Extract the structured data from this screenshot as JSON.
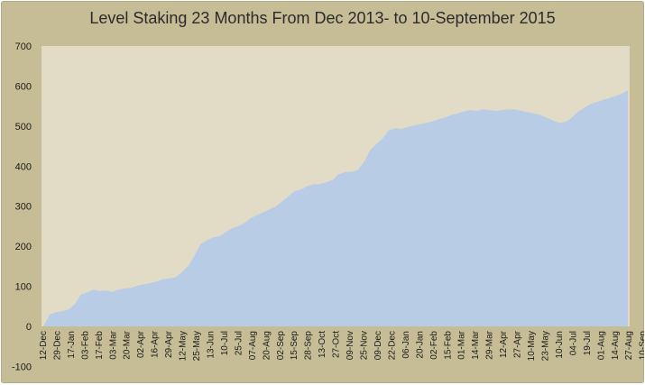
{
  "chart_data": {
    "type": "area",
    "title": "Level Staking 23 Months From Dec 2013- to 10-September 2015",
    "xlabel": "",
    "ylabel": "",
    "ylim": [
      -100,
      700
    ],
    "yticks": [
      -100,
      0,
      100,
      200,
      300,
      400,
      500,
      600,
      700
    ],
    "x_tick_labels": [
      "12-Dec",
      "29-Dec",
      "17-Jan",
      "03-Feb",
      "17-Feb",
      "03-Mar",
      "20-Mar",
      "02-Apr",
      "16-Apr",
      "29-Apr",
      "12-May",
      "25-May",
      "13-Jun",
      "10-Jul",
      "25-Jul",
      "07-Aug",
      "20-Aug",
      "02-Sep",
      "15-Sep",
      "28-Sep",
      "13-Oct",
      "27-Oct",
      "09-Nov",
      "25-Nov",
      "09-Dec",
      "22-Dec",
      "06-Jan",
      "20-Jan",
      "02-Feb",
      "15-Feb",
      "01-Mar",
      "14-Mar",
      "29-Mar",
      "12-Apr",
      "27-Apr",
      "10-May",
      "23-May",
      "10-Jun",
      "04-Jul",
      "19-Jul",
      "01-Aug",
      "14-Aug",
      "27-Aug",
      "10-Sep"
    ],
    "grid": false,
    "legend": "none",
    "colors": {
      "fill": "#b9cce6",
      "plot_background": "#e2dcc7",
      "frame": "#c6bd96"
    },
    "series": [
      {
        "values": [
          0,
          30,
          35,
          38,
          42,
          55,
          80,
          85,
          92,
          88,
          90,
          86,
          92,
          95,
          96,
          102,
          105,
          108,
          112,
          118,
          120,
          122,
          135,
          150,
          175,
          205,
          215,
          222,
          225,
          235,
          245,
          250,
          258,
          270,
          278,
          285,
          292,
          300,
          312,
          325,
          338,
          342,
          350,
          355,
          355,
          360,
          365,
          380,
          385,
          386,
          390,
          410,
          440,
          455,
          470,
          490,
          495,
          493,
          498,
          502,
          505,
          508,
          512,
          518,
          522,
          528,
          532,
          537,
          540,
          538,
          542,
          540,
          538,
          540,
          542,
          542,
          538,
          535,
          532,
          528,
          522,
          515,
          508,
          510,
          520,
          535,
          545,
          555,
          560,
          565,
          570,
          575,
          580,
          590
        ]
      }
    ]
  }
}
